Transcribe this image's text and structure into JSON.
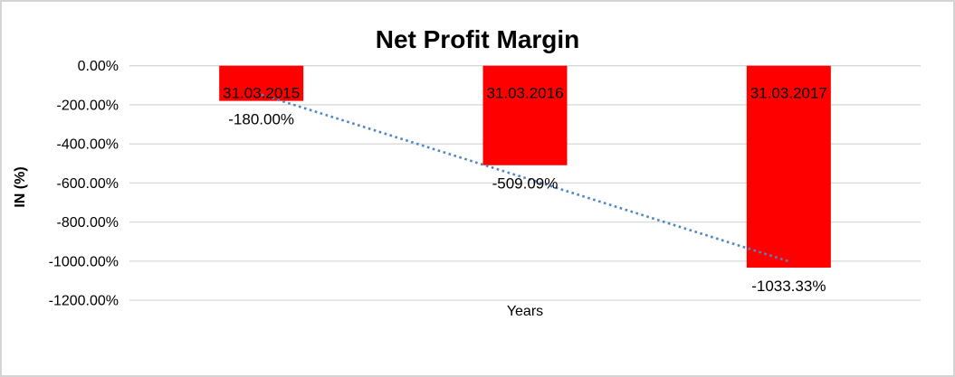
{
  "window": {
    "background": "#ffffff",
    "border_color": "#d4d4d4"
  },
  "chart_data": {
    "type": "bar",
    "title": "Net Profit Margin",
    "xlabel": "Years",
    "ylabel": "IN (%)",
    "categories": [
      "31.03.2015",
      "31.03.2016",
      "31.03.2017"
    ],
    "values": [
      -180.0,
      -509.09,
      -1033.33
    ],
    "data_labels": [
      "-180.00%",
      "-509.09%",
      "-1033.33%"
    ],
    "y_ticks": [
      {
        "label": "0.00%",
        "value": 0
      },
      {
        "label": "-200.00%",
        "value": -200
      },
      {
        "label": "-400.00%",
        "value": -400
      },
      {
        "label": "-600.00%",
        "value": -600
      },
      {
        "label": "-800.00%",
        "value": -800
      },
      {
        "label": "-1000.00%",
        "value": -1000
      },
      {
        "label": "-1200.00%",
        "value": -1200
      }
    ],
    "ylim": [
      0,
      -1200
    ],
    "grid": true,
    "legend_position": "none",
    "bar_color": "#ff0000",
    "gridline_color": "#d9d9d9",
    "text_color": "#000000",
    "trendline": {
      "type": "linear",
      "style": "dotted",
      "color": "#4e86c6"
    }
  }
}
